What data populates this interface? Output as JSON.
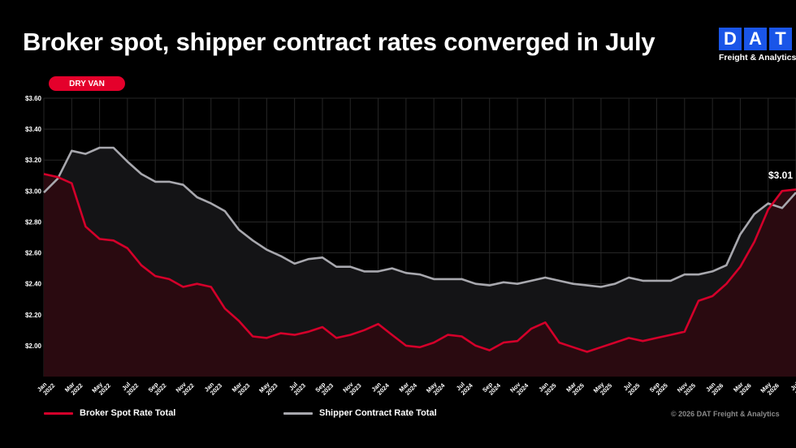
{
  "title": "Broker spot, shipper contract rates converged in July",
  "logo": {
    "letters": [
      "D",
      "A",
      "T"
    ],
    "tagline": "Freight & Analytics",
    "color": "#1a55e8"
  },
  "pill": {
    "label": "DRY VAN",
    "color": "#e4002b"
  },
  "colors": {
    "spot": "#d4002a",
    "contract": "#a8a8ae",
    "background": "#000000"
  },
  "chart_data": {
    "type": "line",
    "x": [
      "Jan 2022",
      "Feb 2022",
      "Mar 2022",
      "Apr 2022",
      "May 2022",
      "Jun 2022",
      "Jul 2022",
      "Aug 2022",
      "Sep 2022",
      "Oct 2022",
      "Nov 2022",
      "Dec 2022",
      "Jan 2023",
      "Feb 2023",
      "Mar 2023",
      "Apr 2023",
      "May 2023",
      "Jun 2023",
      "Jul 2023",
      "Aug 2023",
      "Sep 2023",
      "Oct 2023",
      "Nov 2023",
      "Dec 2023",
      "Jan 2024",
      "Feb 2024",
      "Mar 2024",
      "Apr 2024",
      "May 2024",
      "Jun 2024",
      "Jul 2024",
      "Aug 2024",
      "Sep 2024",
      "Oct 2024",
      "Nov 2024",
      "Dec 2024",
      "Jan 2025",
      "Feb 2025",
      "Mar 2025",
      "Apr 2025",
      "May 2025",
      "Jun 2025",
      "Jul 2025",
      "Aug 2025",
      "Sep 2025",
      "Oct 2025",
      "Nov 2025",
      "Dec 2025",
      "Jan 2026",
      "Feb 2026",
      "Mar 2026",
      "Apr 2026",
      "May 2026",
      "Jun 2026",
      "Jul 2026"
    ],
    "tick_labels": [
      [
        "Jan",
        "2022"
      ],
      [
        "Mar",
        "2022"
      ],
      [
        "May",
        "2022"
      ],
      [
        "Jul",
        "2022"
      ],
      [
        "Sep",
        "2022"
      ],
      [
        "Nov",
        "2022"
      ],
      [
        "Jan",
        "2023"
      ],
      [
        "Mar",
        "2023"
      ],
      [
        "May",
        "2023"
      ],
      [
        "Jul",
        "2023"
      ],
      [
        "Sep",
        "2023"
      ],
      [
        "Nov",
        "2023"
      ],
      [
        "Jan",
        "2024"
      ],
      [
        "Mar",
        "2024"
      ],
      [
        "May",
        "2024"
      ],
      [
        "Jul",
        "2024"
      ],
      [
        "Sep",
        "2024"
      ],
      [
        "Nov",
        "2024"
      ],
      [
        "Jan",
        "2025"
      ],
      [
        "Mar",
        "2025"
      ],
      [
        "May",
        "2025"
      ],
      [
        "Jul",
        "2025"
      ],
      [
        "Sep",
        "2025"
      ],
      [
        "Nov",
        "2025"
      ],
      [
        "Jan",
        "2026"
      ],
      [
        "Mar",
        "2026"
      ],
      [
        "May",
        "2026"
      ],
      [
        "Jul",
        "2026"
      ]
    ],
    "series": [
      {
        "name": "Broker Spot Rate Total",
        "values": [
          3.11,
          3.09,
          3.05,
          2.77,
          2.69,
          2.68,
          2.63,
          2.52,
          2.45,
          2.43,
          2.38,
          2.4,
          2.38,
          2.24,
          2.16,
          2.06,
          2.05,
          2.08,
          2.07,
          2.09,
          2.12,
          2.05,
          2.07,
          2.1,
          2.14,
          2.07,
          2.0,
          1.99,
          2.02,
          2.07,
          2.06,
          2.0,
          1.97,
          2.02,
          2.03,
          2.11,
          2.15,
          2.02,
          1.99,
          1.96,
          1.99,
          2.02,
          2.05,
          2.03,
          2.05,
          2.07,
          2.09,
          2.29,
          2.32,
          2.4,
          2.51,
          2.67,
          2.88,
          3.0,
          3.01
        ]
      },
      {
        "name": "Shipper Contract Rate Total",
        "values": [
          2.99,
          3.08,
          3.26,
          3.24,
          3.28,
          3.28,
          3.19,
          3.11,
          3.06,
          3.06,
          3.04,
          2.96,
          2.92,
          2.87,
          2.75,
          2.68,
          2.62,
          2.58,
          2.53,
          2.56,
          2.57,
          2.51,
          2.51,
          2.48,
          2.48,
          2.5,
          2.47,
          2.46,
          2.43,
          2.43,
          2.43,
          2.4,
          2.39,
          2.41,
          2.4,
          2.42,
          2.44,
          2.42,
          2.4,
          2.39,
          2.38,
          2.4,
          2.44,
          2.42,
          2.42,
          2.42,
          2.46,
          2.46,
          2.48,
          2.52,
          2.72,
          2.85,
          2.92,
          2.89,
          2.99
        ]
      }
    ],
    "y_ticks": [
      "$2.00",
      "$2.20",
      "$2.40",
      "$2.60",
      "$2.80",
      "$3.00",
      "$3.20",
      "$3.40",
      "$3.60"
    ],
    "ylim": [
      1.8,
      3.6
    ],
    "annotation": "$3.01",
    "grid": true,
    "legend_position": "bottom"
  },
  "legend": {
    "spot_label": "Broker Spot Rate Total",
    "contract_label": "Shipper Contract Rate Total"
  },
  "copyright": "© 2026 DAT Freight & Analytics"
}
